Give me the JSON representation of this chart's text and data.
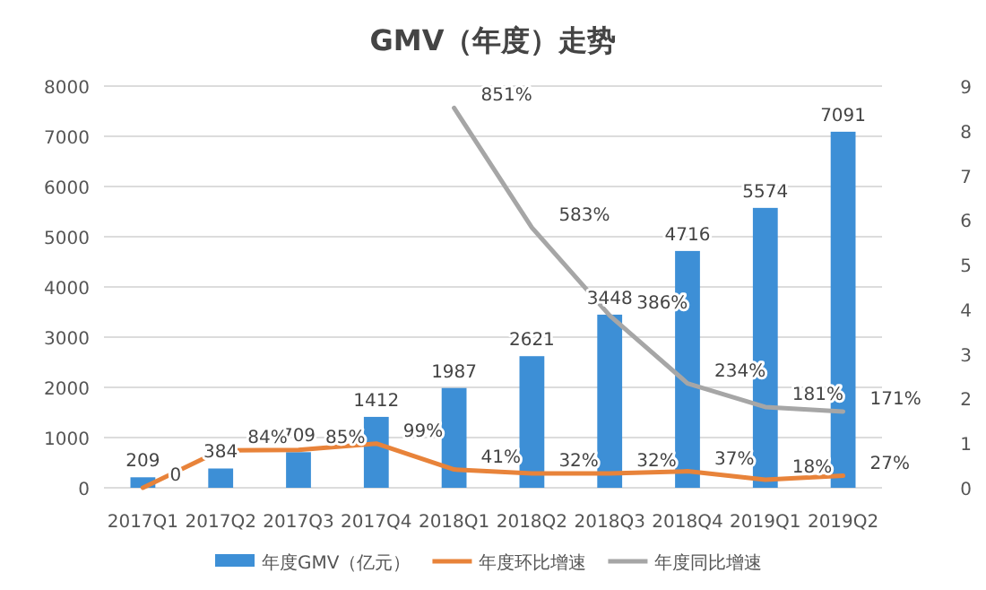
{
  "chart_data": {
    "type": "bar",
    "title": "GMV（年度）走势",
    "categories": [
      "2017Q1",
      "2017Q2",
      "2017Q3",
      "2017Q4",
      "2018Q1",
      "2018Q2",
      "2018Q3",
      "2018Q4",
      "2019Q1",
      "2019Q2"
    ],
    "series": [
      {
        "name": "年度GMV（亿元）",
        "color": "#3d8fd6",
        "values": [
          209,
          384,
          709,
          1412,
          1987,
          2621,
          3448,
          4716,
          5574,
          7091
        ],
        "value_labels": [
          "209",
          "384",
          "709",
          "1412",
          "1987",
          "2621",
          "3448",
          "4716",
          "5574",
          "7091"
        ]
      },
      {
        "name": "年度环比增速",
        "type": "line",
        "axis": "y2",
        "color": "#e8833a",
        "values": [
          0,
          0.84,
          0.85,
          0.99,
          0.41,
          0.32,
          0.32,
          0.37,
          0.18,
          0.27
        ],
        "value_labels": [
          "0",
          "84%",
          "85%",
          "99%",
          "41%",
          "32%",
          "32%",
          "37%",
          "18%",
          "27%"
        ]
      },
      {
        "name": "年度同比增速",
        "type": "line",
        "axis": "y2",
        "color": "#a6a6a6",
        "values": [
          null,
          null,
          null,
          null,
          8.51,
          5.83,
          3.86,
          2.34,
          1.81,
          1.71
        ],
        "value_labels": [
          null,
          null,
          null,
          null,
          "851%",
          "583%",
          "386%",
          "234%",
          "181%",
          "171%"
        ]
      }
    ],
    "ylim": [
      0,
      8000
    ],
    "yticks": [
      0,
      1000,
      2000,
      3000,
      4000,
      5000,
      6000,
      7000,
      8000
    ],
    "y2lim": [
      0,
      9
    ],
    "y2ticks": [
      0,
      1,
      2,
      3,
      4,
      5,
      6,
      7,
      8,
      9
    ],
    "grid": "y",
    "legend": "bottom"
  }
}
